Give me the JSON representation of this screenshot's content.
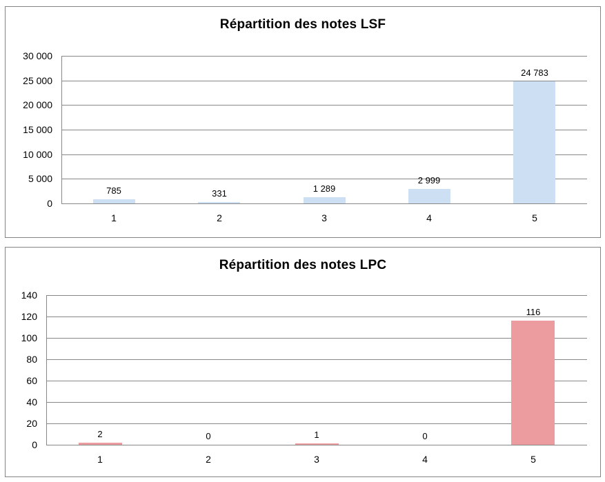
{
  "page": {
    "background": "#ffffff",
    "panel_border_color": "#848484"
  },
  "chart_data": [
    {
      "type": "bar",
      "title": "Répartition des notes LSF",
      "categories": [
        "1",
        "2",
        "3",
        "4",
        "5"
      ],
      "values": [
        785,
        331,
        1289,
        2999,
        24783
      ],
      "value_labels": [
        "785",
        "331",
        "1 289",
        "2 999",
        "24 783"
      ],
      "xlabel": "",
      "ylabel": "",
      "ylim": [
        0,
        30000
      ],
      "yticks": [
        {
          "value": 0,
          "label": "0"
        },
        {
          "value": 5000,
          "label": "5 000"
        },
        {
          "value": 10000,
          "label": "10 000"
        },
        {
          "value": 15000,
          "label": "15 000"
        },
        {
          "value": 20000,
          "label": "20 000"
        },
        {
          "value": 25000,
          "label": "25 000"
        },
        {
          "value": 30000,
          "label": "30 000"
        }
      ],
      "grid": true,
      "legend": "none",
      "bar_color": "#CDE0F3",
      "grid_color": "#878787",
      "text_color": "#000000"
    },
    {
      "type": "bar",
      "title": "Répartition des notes LPC",
      "categories": [
        "1",
        "2",
        "3",
        "4",
        "5"
      ],
      "values": [
        2,
        0,
        1,
        0,
        116
      ],
      "value_labels": [
        "2",
        "0",
        "1",
        "0",
        "116"
      ],
      "xlabel": "",
      "ylabel": "",
      "ylim": [
        0,
        140
      ],
      "yticks": [
        {
          "value": 0,
          "label": "0"
        },
        {
          "value": 20,
          "label": "20"
        },
        {
          "value": 40,
          "label": "40"
        },
        {
          "value": 60,
          "label": "60"
        },
        {
          "value": 80,
          "label": "80"
        },
        {
          "value": 100,
          "label": "100"
        },
        {
          "value": 120,
          "label": "120"
        },
        {
          "value": 140,
          "label": "140"
        }
      ],
      "grid": true,
      "legend": "none",
      "bar_color": "#EC9B9E",
      "grid_color": "#878787",
      "text_color": "#000000"
    }
  ]
}
